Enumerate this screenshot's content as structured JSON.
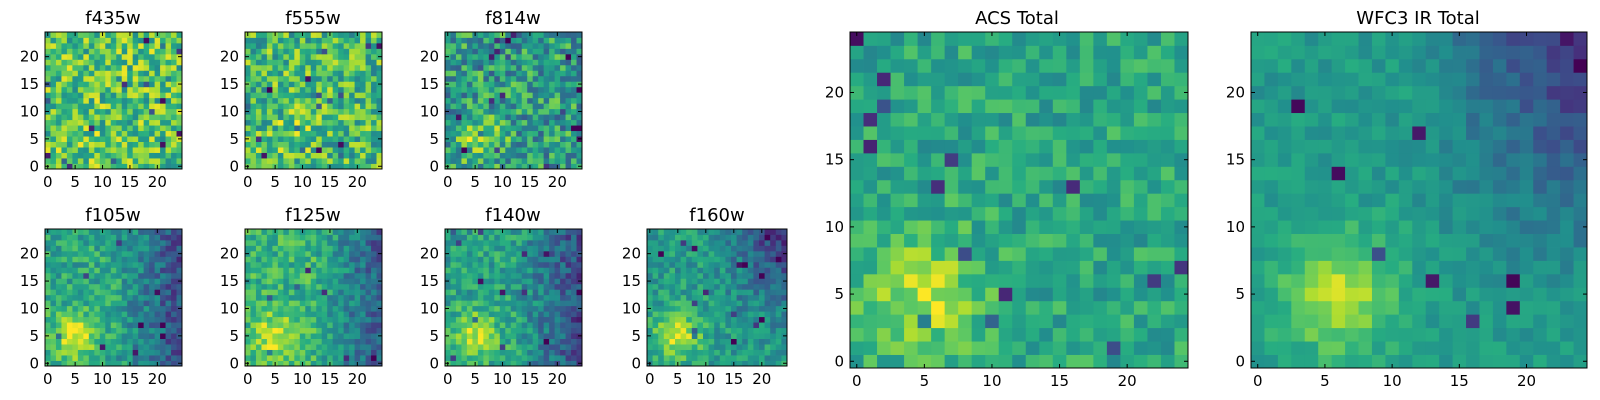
{
  "chart_data": [
    {
      "type": "heatmap",
      "title": "f435w",
      "xticks": [
        "0",
        "5",
        "10",
        "15",
        "20"
      ],
      "yticks": [
        "0",
        "5",
        "10",
        "15",
        "20"
      ],
      "xlim": [
        -0.5,
        24.5
      ],
      "ylim": [
        -0.5,
        24.5
      ],
      "grid": false,
      "colormap": "viridis",
      "size": 25,
      "source_profile": {
        "center": [
          5,
          5
        ],
        "peak": 0.05,
        "noise": 0.26,
        "base": 0.72,
        "dark_region": "none"
      }
    },
    {
      "type": "heatmap",
      "title": "f555w",
      "xticks": [
        "0",
        "5",
        "10",
        "15",
        "20"
      ],
      "yticks": [
        "0",
        "5",
        "10",
        "15",
        "20"
      ],
      "xlim": [
        -0.5,
        24.5
      ],
      "ylim": [
        -0.5,
        24.5
      ],
      "grid": false,
      "colormap": "viridis",
      "size": 25,
      "source_profile": {
        "center": [
          8,
          5
        ],
        "peak": 0.12,
        "noise": 0.26,
        "base": 0.68,
        "dark_region": "none"
      }
    },
    {
      "type": "heatmap",
      "title": "f814w",
      "xticks": [
        "0",
        "5",
        "10",
        "15",
        "20"
      ],
      "yticks": [
        "0",
        "5",
        "10",
        "15",
        "20"
      ],
      "xlim": [
        -0.5,
        24.5
      ],
      "ylim": [
        -0.5,
        24.5
      ],
      "grid": false,
      "colormap": "viridis",
      "size": 25,
      "source_profile": {
        "center": [
          6,
          5
        ],
        "peak": 0.3,
        "noise": 0.26,
        "base": 0.55,
        "dark_region": "none"
      }
    },
    {
      "type": "heatmap",
      "title": "f105w",
      "xticks": [
        "0",
        "5",
        "10",
        "15",
        "20"
      ],
      "yticks": [
        "0",
        "5",
        "10",
        "15",
        "20"
      ],
      "xlim": [
        -0.5,
        24.5
      ],
      "ylim": [
        -0.5,
        24.5
      ],
      "grid": false,
      "colormap": "viridis",
      "size": 25,
      "source_profile": {
        "center": [
          5,
          5
        ],
        "peak": 0.35,
        "noise": 0.16,
        "base": 0.6,
        "dark_region": "right"
      }
    },
    {
      "type": "heatmap",
      "title": "f125w",
      "xticks": [
        "0",
        "5",
        "10",
        "15",
        "20"
      ],
      "yticks": [
        "0",
        "5",
        "10",
        "15",
        "20"
      ],
      "xlim": [
        -0.5,
        24.5
      ],
      "ylim": [
        -0.5,
        24.5
      ],
      "grid": false,
      "colormap": "viridis",
      "size": 25,
      "source_profile": {
        "center": [
          5,
          5
        ],
        "peak": 0.3,
        "noise": 0.16,
        "base": 0.65,
        "dark_region": "right"
      }
    },
    {
      "type": "heatmap",
      "title": "f140w",
      "xticks": [
        "0",
        "5",
        "10",
        "15",
        "20"
      ],
      "yticks": [
        "0",
        "5",
        "10",
        "15",
        "20"
      ],
      "xlim": [
        -0.5,
        24.5
      ],
      "ylim": [
        -0.5,
        24.5
      ],
      "grid": false,
      "colormap": "viridis",
      "size": 25,
      "source_profile": {
        "center": [
          5,
          5
        ],
        "peak": 0.35,
        "noise": 0.16,
        "base": 0.58,
        "dark_region": "right"
      }
    },
    {
      "type": "heatmap",
      "title": "f160w",
      "xticks": [
        "0",
        "5",
        "10",
        "15",
        "20"
      ],
      "yticks": [
        "0",
        "5",
        "10",
        "15",
        "20"
      ],
      "xlim": [
        -0.5,
        24.5
      ],
      "ylim": [
        -0.5,
        24.5
      ],
      "grid": false,
      "colormap": "viridis",
      "size": 25,
      "source_profile": {
        "center": [
          5,
          5
        ],
        "peak": 0.38,
        "noise": 0.14,
        "base": 0.55,
        "dark_region": "upper-right"
      }
    },
    {
      "type": "heatmap",
      "title": "ACS Total",
      "xticks": [
        "0",
        "5",
        "10",
        "15",
        "20"
      ],
      "yticks": [
        "0",
        "5",
        "10",
        "15",
        "20"
      ],
      "xlim": [
        -0.5,
        24.5
      ],
      "ylim": [
        -0.5,
        24.5
      ],
      "grid": false,
      "colormap": "viridis",
      "size": 25,
      "source_profile": {
        "center": [
          5,
          5
        ],
        "peak": 0.3,
        "noise": 0.14,
        "base": 0.6,
        "dark_region": "none"
      }
    },
    {
      "type": "heatmap",
      "title": "WFC3 IR Total",
      "xticks": [
        "0",
        "5",
        "10",
        "15",
        "20"
      ],
      "yticks": [
        "0",
        "5",
        "10",
        "15",
        "20"
      ],
      "xlim": [
        -0.5,
        24.5
      ],
      "ylim": [
        -0.5,
        24.5
      ],
      "grid": false,
      "colormap": "viridis",
      "size": 25,
      "source_profile": {
        "center": [
          6,
          5
        ],
        "peak": 0.35,
        "noise": 0.08,
        "base": 0.55,
        "dark_region": "upper-right"
      }
    }
  ]
}
